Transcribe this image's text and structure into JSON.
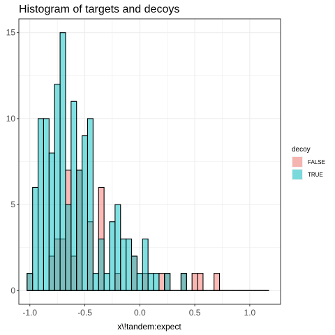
{
  "chart_data": {
    "type": "bar",
    "subtype": "histogram-overlay",
    "title": "Histogram of targets and decoys",
    "xlabel": "x\\!tandem:expect",
    "ylabel": "",
    "xlim": [
      -1.1,
      1.28
    ],
    "ylim": [
      -0.8,
      15.8
    ],
    "x_ticks": [
      -1.0,
      -0.5,
      0.0,
      0.5,
      1.0
    ],
    "x_tick_labels": [
      "-1.0",
      "-0.5",
      "0.0",
      "0.5",
      "1.0"
    ],
    "y_ticks": [
      0,
      5,
      10,
      15
    ],
    "y_tick_labels": [
      "0",
      "5",
      "10",
      "15"
    ],
    "bin_width": 0.05,
    "bin_centers": [
      -1.0,
      -0.95,
      -0.9,
      -0.85,
      -0.8,
      -0.75,
      -0.7,
      -0.65,
      -0.6,
      -0.55,
      -0.5,
      -0.45,
      -0.4,
      -0.35,
      -0.3,
      -0.25,
      -0.2,
      -0.15,
      -0.1,
      -0.05,
      0.0,
      0.05,
      0.1,
      0.15,
      0.2,
      0.25,
      0.3,
      0.35,
      0.4,
      0.45,
      0.5,
      0.55,
      0.6,
      0.65,
      0.7,
      0.75,
      0.8,
      0.85,
      0.9,
      0.95,
      1.0,
      1.05,
      1.1,
      1.15
    ],
    "grid": true,
    "legend_position": "right",
    "legend_title": "decoy",
    "series": [
      {
        "name": "FALSE",
        "color": "#F8766D",
        "values": [
          1,
          0,
          0,
          0,
          2,
          3,
          3,
          7,
          2,
          7,
          0,
          4,
          0,
          6,
          0,
          0,
          1,
          0,
          0,
          2,
          0,
          1,
          0,
          0,
          1,
          1,
          0,
          0,
          1,
          0,
          1,
          1,
          0,
          0,
          1,
          0,
          0,
          0,
          0,
          0,
          0,
          0,
          0,
          0
        ]
      },
      {
        "name": "TRUE",
        "color": "#00BFC4",
        "values": [
          1,
          6,
          10,
          10,
          8,
          12,
          15,
          5,
          11,
          7,
          9,
          10,
          1,
          3,
          1,
          4,
          5,
          3,
          3,
          2,
          1,
          3,
          1,
          1,
          0,
          1,
          0,
          0,
          1,
          0,
          0,
          0,
          0,
          0,
          0,
          0,
          0,
          0,
          0,
          0,
          0,
          0,
          0,
          0
        ]
      }
    ]
  }
}
